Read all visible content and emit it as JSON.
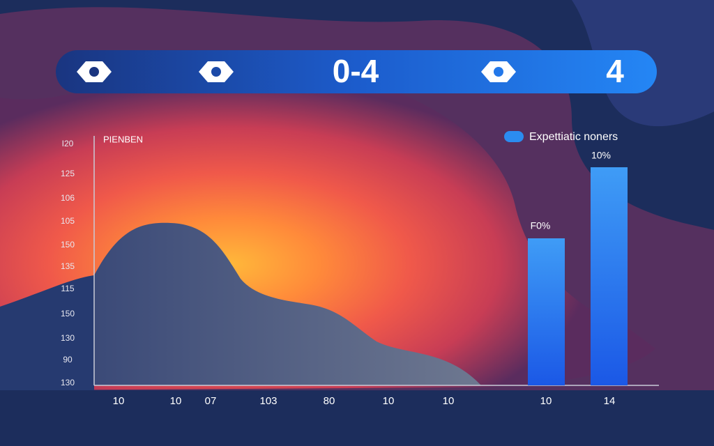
{
  "header": {
    "score_left": "0-4",
    "score_right": "4"
  },
  "chart": {
    "subtitle": "PIENBEN",
    "y_labels": [
      "I20",
      "125",
      "106",
      "105",
      "150",
      "135",
      "115",
      "150",
      "130",
      "90",
      "130"
    ],
    "x_labels": [
      "10",
      "10",
      "07",
      "103",
      "80",
      "10",
      "10",
      "10",
      "14"
    ],
    "legend": "Expettiatic noners",
    "bar_labels": [
      "F0%",
      "10%"
    ]
  }
}
